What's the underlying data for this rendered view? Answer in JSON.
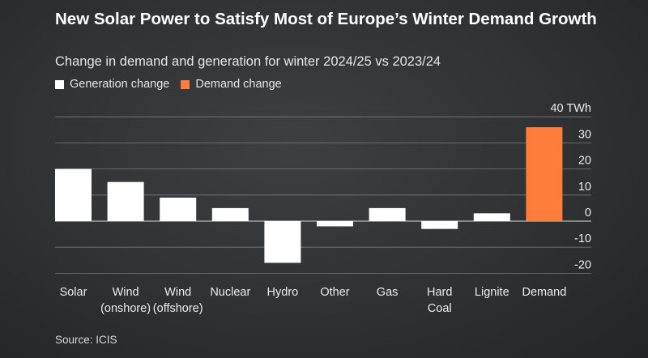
{
  "title": "New Solar Power to Satisfy Most of Europe’s Winter Demand Growth",
  "subtitle": "Change in demand and generation for winter 2024/25 vs 2023/24",
  "legend": {
    "generation_label": "Generation change",
    "demand_label": "Demand change"
  },
  "source": "Source: ICIS",
  "colors": {
    "generation": "#ffffff",
    "demand": "#ff7d3b",
    "grid": "#8a8c8e"
  },
  "chart_data": {
    "type": "bar",
    "title": "New Solar Power to Satisfy Most of Europe’s Winter Demand Growth",
    "subtitle": "Change in demand and generation for winter 2024/25 vs 2023/24",
    "xlabel": "",
    "ylabel": "",
    "unit": "TWh",
    "ylim": [
      -20,
      40
    ],
    "yticks": [
      40,
      30,
      20,
      10,
      0,
      -10,
      -20
    ],
    "ytick_labels": [
      "40 TWh",
      "30",
      "20",
      "10",
      "0",
      "-10",
      "-20"
    ],
    "grid": true,
    "legend_position": "top-left",
    "categories": [
      [
        "Solar"
      ],
      [
        "Wind",
        "(onshore)"
      ],
      [
        "Wind",
        "(offshore)"
      ],
      [
        "Nuclear"
      ],
      [
        "Hydro"
      ],
      [
        "Other"
      ],
      [
        "Gas"
      ],
      [
        "Hard",
        "Coal"
      ],
      [
        "Lignite"
      ],
      [
        "Demand"
      ]
    ],
    "series": [
      {
        "name": "Generation change",
        "values": [
          20,
          15,
          9,
          5,
          -16,
          -2,
          5,
          -3,
          3,
          null
        ]
      },
      {
        "name": "Demand change",
        "values": [
          null,
          null,
          null,
          null,
          null,
          null,
          null,
          null,
          null,
          36
        ]
      }
    ]
  }
}
